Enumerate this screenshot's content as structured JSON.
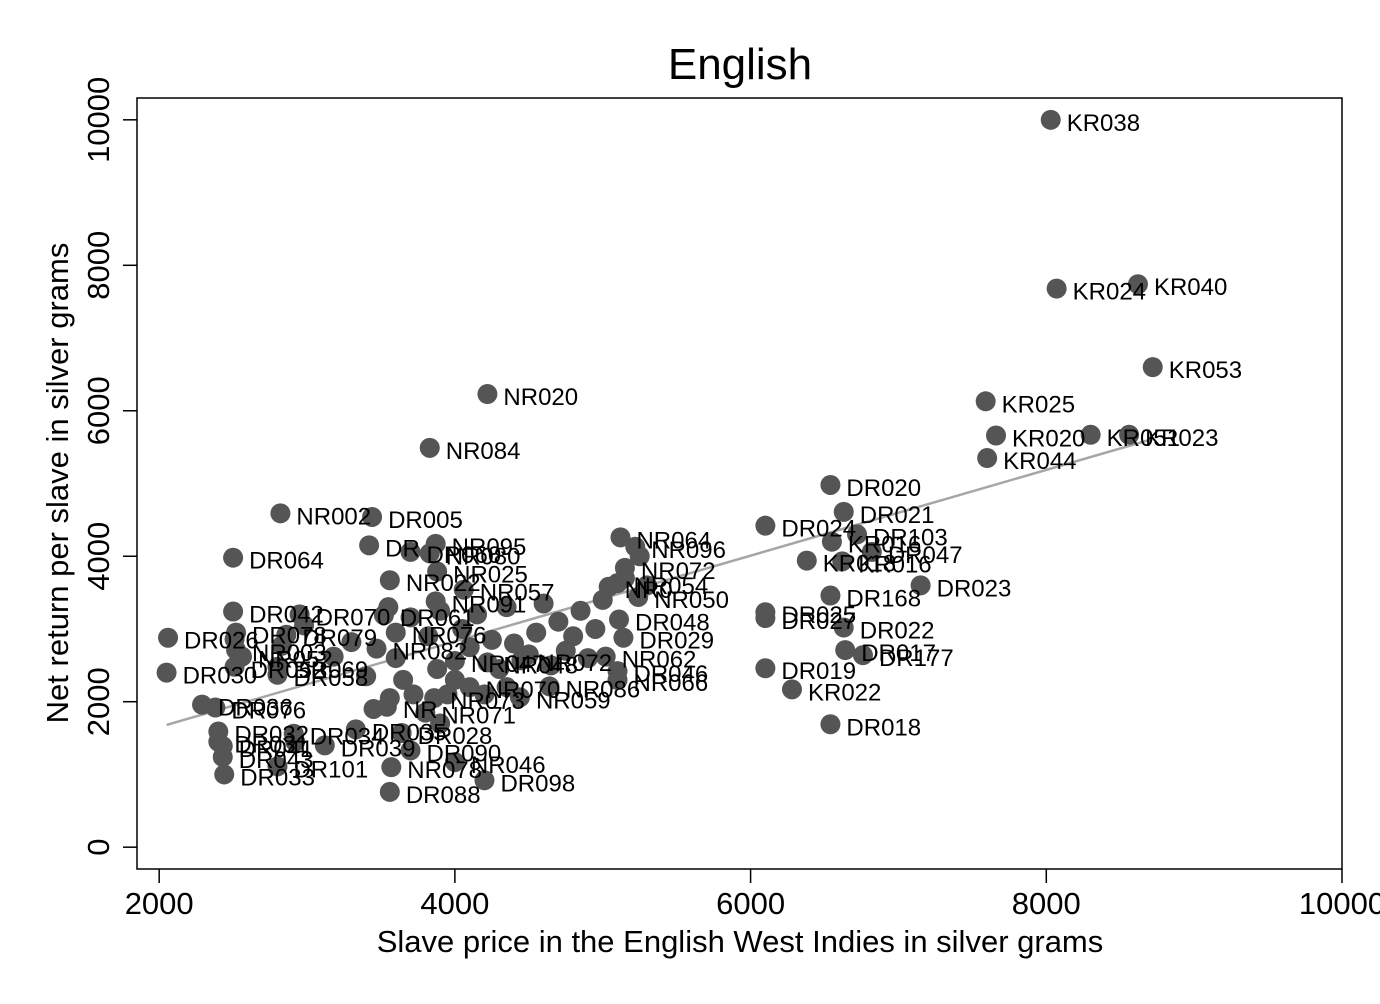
{
  "chart_data": {
    "type": "scatter",
    "title": "English",
    "xlabel": "Slave price in the English West Indies in silver grams",
    "ylabel": "Net return per slave in silver grams",
    "xlim": [
      1850,
      10000
    ],
    "ylim": [
      -300,
      10300
    ],
    "xticks": [
      2000,
      4000,
      6000,
      8000,
      10000
    ],
    "yticks": [
      0,
      2000,
      4000,
      6000,
      8000,
      10000
    ],
    "grid": false,
    "legend": "none",
    "colors": {
      "point": "#555555",
      "fit_line": "#a6a6a6",
      "frame": "#000000"
    },
    "fit_line": {
      "x": [
        2050,
        8700
      ],
      "y": [
        1680,
        5600
      ]
    },
    "points": [
      {
        "label": "KR038",
        "x": 8030,
        "y": 10000
      },
      {
        "label": "KR024",
        "x": 8070,
        "y": 7680
      },
      {
        "label": "KR040",
        "x": 8620,
        "y": 7740
      },
      {
        "label": "KR053",
        "x": 8720,
        "y": 6600
      },
      {
        "label": "KR025",
        "x": 7590,
        "y": 6130
      },
      {
        "label": "KR020",
        "x": 7660,
        "y": 5660
      },
      {
        "label": "KR051",
        "x": 8300,
        "y": 5670
      },
      {
        "label": "KR023",
        "x": 8560,
        "y": 5670
      },
      {
        "label": "KR044",
        "x": 7600,
        "y": 5350
      },
      {
        "label": "NR020",
        "x": 4220,
        "y": 6230
      },
      {
        "label": "NR084",
        "x": 3830,
        "y": 5490
      },
      {
        "label": "DR020",
        "x": 6540,
        "y": 4980
      },
      {
        "label": "DR021",
        "x": 6630,
        "y": 4610
      },
      {
        "label": "DR024",
        "x": 6100,
        "y": 4420
      },
      {
        "label": "DR103",
        "x": 6720,
        "y": 4300
      },
      {
        "label": "KR016",
        "x": 6550,
        "y": 4200
      },
      {
        "label": "DR047",
        "x": 6820,
        "y": 4060
      },
      {
        "label": "KR016",
        "x": 6620,
        "y": 3930
      },
      {
        "label": "KR018",
        "x": 6380,
        "y": 3940
      },
      {
        "label": "DR023",
        "x": 7150,
        "y": 3600
      },
      {
        "label": "DR168",
        "x": 6540,
        "y": 3460
      },
      {
        "label": "DR025",
        "x": 6100,
        "y": 3230
      },
      {
        "label": "DR027",
        "x": 6100,
        "y": 3150
      },
      {
        "label": "DR022",
        "x": 6630,
        "y": 3020
      },
      {
        "label": "DR017",
        "x": 6640,
        "y": 2710
      },
      {
        "label": "DR177",
        "x": 6760,
        "y": 2640
      },
      {
        "label": "DR019",
        "x": 6100,
        "y": 2460
      },
      {
        "label": "KR022",
        "x": 6280,
        "y": 2170
      },
      {
        "label": "DR018",
        "x": 6540,
        "y": 1690
      },
      {
        "label": "NR002",
        "x": 2820,
        "y": 4590
      },
      {
        "label": "DR005",
        "x": 3440,
        "y": 4540
      },
      {
        "label": "DR064",
        "x": 2500,
        "y": 3980
      },
      {
        "label": "DR",
        "x": 3420,
        "y": 4150
      },
      {
        "label": "NR095",
        "x": 3870,
        "y": 4170
      },
      {
        "label": "NR080",
        "x": 3830,
        "y": 4040
      },
      {
        "label": "DR060",
        "x": 3700,
        "y": 4060
      },
      {
        "label": "NR025",
        "x": 3880,
        "y": 3790
      },
      {
        "label": "NR022",
        "x": 3560,
        "y": 3670
      },
      {
        "label": "NR057",
        "x": 4060,
        "y": 3540
      },
      {
        "label": "NR091",
        "x": 3870,
        "y": 3380
      },
      {
        "label": "NR064",
        "x": 5120,
        "y": 4260
      },
      {
        "label": "NR096",
        "x": 5220,
        "y": 4130
      },
      {
        "label": "NR072",
        "x": 5150,
        "y": 3840
      },
      {
        "label": "NR054",
        "x": 5100,
        "y": 3630
      },
      {
        "label": "NR050",
        "x": 5240,
        "y": 3440
      },
      {
        "label": "NR0",
        "x": 5040,
        "y": 3580
      },
      {
        "label": "DR048",
        "x": 5110,
        "y": 3130
      },
      {
        "label": "DR029",
        "x": 5140,
        "y": 2880
      },
      {
        "label": "NR062",
        "x": 5020,
        "y": 2620
      },
      {
        "label": "DR046",
        "x": 5100,
        "y": 2420
      },
      {
        "label": "NR066",
        "x": 5100,
        "y": 2300
      },
      {
        "label": "DR042",
        "x": 2500,
        "y": 3240
      },
      {
        "label": "DR070",
        "x": 2950,
        "y": 3200
      },
      {
        "label": "DR061",
        "x": 3520,
        "y": 3190
      },
      {
        "label": "DR026",
        "x": 2060,
        "y": 2880
      },
      {
        "label": "DR078",
        "x": 2520,
        "y": 2950
      },
      {
        "label": "DR079",
        "x": 2860,
        "y": 2920
      },
      {
        "label": "NR076",
        "x": 3600,
        "y": 2950
      },
      {
        "label": "NR003",
        "x": 2520,
        "y": 2710
      },
      {
        "label": "NR052",
        "x": 2560,
        "y": 2620
      },
      {
        "label": "NR082",
        "x": 3470,
        "y": 2730
      },
      {
        "label": "DR030",
        "x": 2050,
        "y": 2400
      },
      {
        "label": "DR058",
        "x": 2800,
        "y": 2370
      },
      {
        "label": "DR052",
        "x": 2510,
        "y": 2480
      },
      {
        "label": "DR069",
        "x": 2800,
        "y": 2480
      },
      {
        "label": "NR047",
        "x": 4000,
        "y": 2560
      },
      {
        "label": "NR048",
        "x": 4220,
        "y": 2540
      },
      {
        "label": "NR072",
        "x": 4450,
        "y": 2570
      },
      {
        "label": "NR086",
        "x": 4640,
        "y": 2210
      },
      {
        "label": "NR059",
        "x": 4440,
        "y": 2060
      },
      {
        "label": "NR070",
        "x": 4100,
        "y": 2200
      },
      {
        "label": "NR073",
        "x": 3860,
        "y": 2050
      },
      {
        "label": "DR036",
        "x": 2290,
        "y": 1960
      },
      {
        "label": "DR076",
        "x": 2380,
        "y": 1920
      },
      {
        "label": "NR",
        "x": 3540,
        "y": 1930
      },
      {
        "label": "NR071",
        "x": 3800,
        "y": 1850
      },
      {
        "label": "DR028",
        "x": 3640,
        "y": 1570
      },
      {
        "label": "DR032",
        "x": 2400,
        "y": 1590
      },
      {
        "label": "DR034",
        "x": 2910,
        "y": 1560
      },
      {
        "label": "DR035",
        "x": 3330,
        "y": 1620
      },
      {
        "label": "DR031",
        "x": 2400,
        "y": 1450
      },
      {
        "label": "DR039",
        "x": 3120,
        "y": 1400
      },
      {
        "label": "DR041",
        "x": 2430,
        "y": 1390
      },
      {
        "label": "DR043",
        "x": 2430,
        "y": 1240
      },
      {
        "label": "DR090",
        "x": 3700,
        "y": 1330
      },
      {
        "label": "NR046",
        "x": 4000,
        "y": 1170
      },
      {
        "label": "NR078",
        "x": 3570,
        "y": 1100
      },
      {
        "label": "DR101",
        "x": 2800,
        "y": 1110
      },
      {
        "label": "DR033",
        "x": 2440,
        "y": 1000
      },
      {
        "label": "DR088",
        "x": 3560,
        "y": 760
      },
      {
        "label": "DR098",
        "x": 4200,
        "y": 920
      },
      {
        "label": "",
        "x": 2510,
        "y": 2860
      },
      {
        "label": "",
        "x": 2830,
        "y": 2770
      },
      {
        "label": "",
        "x": 2980,
        "y": 3050
      },
      {
        "label": "",
        "x": 3180,
        "y": 2620
      },
      {
        "label": "",
        "x": 3300,
        "y": 2820
      },
      {
        "label": "",
        "x": 3400,
        "y": 2350
      },
      {
        "label": "",
        "x": 3550,
        "y": 3300
      },
      {
        "label": "",
        "x": 3700,
        "y": 3160
      },
      {
        "label": "",
        "x": 3600,
        "y": 2600
      },
      {
        "label": "",
        "x": 3650,
        "y": 2300
      },
      {
        "label": "",
        "x": 3720,
        "y": 2100
      },
      {
        "label": "",
        "x": 3820,
        "y": 2900
      },
      {
        "label": "",
        "x": 3900,
        "y": 3250
      },
      {
        "label": "",
        "x": 3880,
        "y": 2450
      },
      {
        "label": "",
        "x": 3950,
        "y": 2100
      },
      {
        "label": "",
        "x": 4050,
        "y": 3000
      },
      {
        "label": "",
        "x": 4100,
        "y": 2750
      },
      {
        "label": "",
        "x": 4150,
        "y": 3200
      },
      {
        "label": "",
        "x": 4250,
        "y": 2850
      },
      {
        "label": "",
        "x": 4300,
        "y": 2450
      },
      {
        "label": "",
        "x": 4350,
        "y": 3300
      },
      {
        "label": "",
        "x": 4400,
        "y": 2800
      },
      {
        "label": "",
        "x": 4500,
        "y": 2650
      },
      {
        "label": "",
        "x": 4550,
        "y": 2950
      },
      {
        "label": "",
        "x": 4600,
        "y": 3350
      },
      {
        "label": "",
        "x": 4650,
        "y": 2500
      },
      {
        "label": "",
        "x": 4700,
        "y": 3100
      },
      {
        "label": "",
        "x": 4750,
        "y": 2700
      },
      {
        "label": "",
        "x": 4800,
        "y": 2900
      },
      {
        "label": "",
        "x": 4850,
        "y": 3250
      },
      {
        "label": "",
        "x": 4900,
        "y": 2600
      },
      {
        "label": "",
        "x": 4950,
        "y": 3000
      },
      {
        "label": "",
        "x": 5000,
        "y": 3400
      },
      {
        "label": "",
        "x": 5150,
        "y": 3700
      },
      {
        "label": "",
        "x": 5250,
        "y": 4000
      },
      {
        "label": "",
        "x": 5300,
        "y": 3600
      },
      {
        "label": "",
        "x": 4200,
        "y": 2100
      },
      {
        "label": "",
        "x": 4350,
        "y": 2200
      },
      {
        "label": "",
        "x": 3450,
        "y": 1900
      },
      {
        "label": "",
        "x": 3900,
        "y": 1700
      },
      {
        "label": "",
        "x": 4000,
        "y": 2300
      },
      {
        "label": "",
        "x": 2920,
        "y": 1450
      },
      {
        "label": "",
        "x": 3560,
        "y": 2050
      }
    ]
  }
}
